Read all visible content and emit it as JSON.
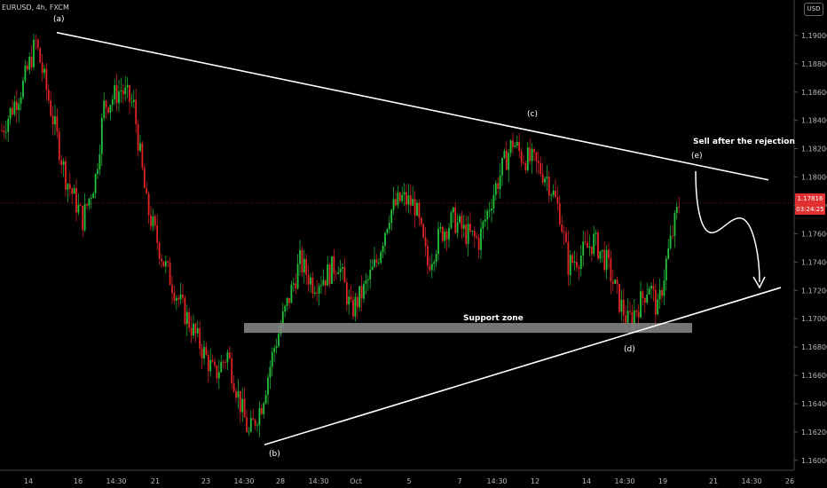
{
  "header": {
    "symbol": "EURUSD, 4h, FXCM",
    "currency": "USD"
  },
  "price_tag": {
    "price": "1.17816",
    "countdown": "03:24:25"
  },
  "colors": {
    "up": "#22c33a",
    "down": "#e02424",
    "trendline": "#ffffff",
    "support_zone": "#8a8a8a",
    "background": "#000000"
  },
  "annotations": {
    "a": "(a)",
    "b": "(b)",
    "c": "(c)",
    "d": "(d)",
    "e": "(e)",
    "sell_note": "Sell after the rejection",
    "support_zone": "Support zone"
  },
  "chart_data": {
    "type": "candlestick",
    "title": "",
    "y_ticks": [
      1.16,
      1.162,
      1.164,
      1.166,
      1.168,
      1.17,
      1.172,
      1.174,
      1.176,
      1.178,
      1.18,
      1.182,
      1.184,
      1.186,
      1.188,
      1.19
    ],
    "y_tick_labels": [
      "1.16000",
      "1.16200",
      "1.16400",
      "1.16600",
      "1.16800",
      "1.17000",
      "1.17200",
      "1.17400",
      "1.17600",
      "1.17800",
      "1.18000",
      "1.18200",
      "1.18400",
      "1.18600",
      "1.18800",
      "1.19000"
    ],
    "ylim": [
      1.1593,
      1.1925
    ],
    "x_labels": [
      "14",
      "16",
      "14:30",
      "21",
      "23",
      "14:30",
      "28",
      "14:30",
      "Oct",
      "5",
      "7",
      "14:30",
      "12",
      "14",
      "14:30",
      "19",
      "21",
      "14:30",
      "26"
    ],
    "last_price": 1.17816,
    "anchors": [
      {
        "i": 0,
        "price": 1.1833
      },
      {
        "i": 10,
        "price": 1.1865
      },
      {
        "i": 16,
        "price": 1.1895
      },
      {
        "i": 22,
        "price": 1.1855
      },
      {
        "i": 30,
        "price": 1.18
      },
      {
        "i": 38,
        "price": 1.177
      },
      {
        "i": 44,
        "price": 1.18
      },
      {
        "i": 48,
        "price": 1.185
      },
      {
        "i": 56,
        "price": 1.1862
      },
      {
        "i": 62,
        "price": 1.185
      },
      {
        "i": 68,
        "price": 1.178
      },
      {
        "i": 76,
        "price": 1.174
      },
      {
        "i": 84,
        "price": 1.171
      },
      {
        "i": 92,
        "price": 1.1685
      },
      {
        "i": 100,
        "price": 1.166
      },
      {
        "i": 106,
        "price": 1.1675
      },
      {
        "i": 112,
        "price": 1.164
      },
      {
        "i": 116,
        "price": 1.1618
      },
      {
        "i": 122,
        "price": 1.164
      },
      {
        "i": 128,
        "price": 1.168
      },
      {
        "i": 134,
        "price": 1.171
      },
      {
        "i": 140,
        "price": 1.174
      },
      {
        "i": 146,
        "price": 1.1725
      },
      {
        "i": 152,
        "price": 1.173
      },
      {
        "i": 158,
        "price": 1.174
      },
      {
        "i": 164,
        "price": 1.1705
      },
      {
        "i": 170,
        "price": 1.172
      },
      {
        "i": 176,
        "price": 1.174
      },
      {
        "i": 182,
        "price": 1.1775
      },
      {
        "i": 188,
        "price": 1.1785
      },
      {
        "i": 194,
        "price": 1.178
      },
      {
        "i": 200,
        "price": 1.1738
      },
      {
        "i": 206,
        "price": 1.176
      },
      {
        "i": 212,
        "price": 1.177
      },
      {
        "i": 218,
        "price": 1.176
      },
      {
        "i": 224,
        "price": 1.1755
      },
      {
        "i": 230,
        "price": 1.1785
      },
      {
        "i": 236,
        "price": 1.181
      },
      {
        "i": 240,
        "price": 1.1825
      },
      {
        "i": 244,
        "price": 1.1815
      },
      {
        "i": 250,
        "price": 1.181
      },
      {
        "i": 256,
        "price": 1.18
      },
      {
        "i": 262,
        "price": 1.1775
      },
      {
        "i": 266,
        "price": 1.1738
      },
      {
        "i": 272,
        "price": 1.1745
      },
      {
        "i": 278,
        "price": 1.1755
      },
      {
        "i": 284,
        "price": 1.174
      },
      {
        "i": 290,
        "price": 1.1712
      },
      {
        "i": 294,
        "price": 1.1698
      },
      {
        "i": 300,
        "price": 1.1712
      },
      {
        "i": 304,
        "price": 1.1725
      },
      {
        "i": 308,
        "price": 1.1705
      },
      {
        "i": 312,
        "price": 1.174
      },
      {
        "i": 318,
        "price": 1.1781
      }
    ],
    "trendlines": [
      {
        "name": "upper",
        "from": {
          "x": "(a)",
          "y": 1.1902
        },
        "to": {
          "y": 1.1798
        }
      },
      {
        "name": "lower",
        "from": {
          "x": "(b)",
          "y": 1.1611
        },
        "to": {
          "y": 1.1722
        }
      }
    ],
    "support_zone": {
      "low": 1.169,
      "high": 1.1697
    }
  }
}
